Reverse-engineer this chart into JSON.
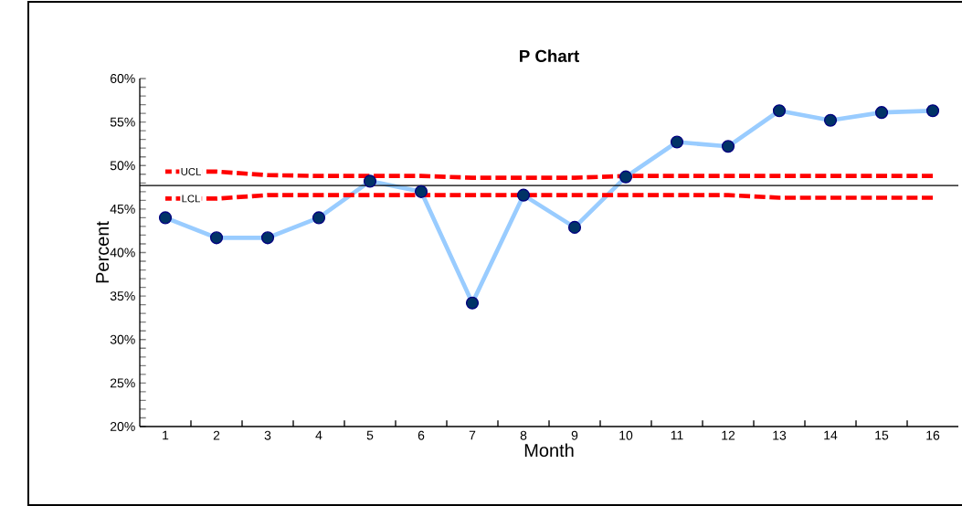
{
  "chart_data": {
    "type": "line",
    "title": "P Chart",
    "xlabel": "Month",
    "ylabel": "Percent",
    "x": [
      1,
      2,
      3,
      4,
      5,
      6,
      7,
      8,
      9,
      10,
      11,
      12,
      13,
      14,
      15,
      16
    ],
    "xlim": [
      0.5,
      16.5
    ],
    "xticks": [
      1,
      2,
      3,
      4,
      5,
      6,
      7,
      8,
      9,
      10,
      11,
      12,
      13,
      14,
      15,
      16
    ],
    "ylim": [
      20,
      60
    ],
    "yticks": [
      {
        "value": 20,
        "label": "20%"
      },
      {
        "value": 25,
        "label": "25%"
      },
      {
        "value": 30,
        "label": "30%"
      },
      {
        "value": 35,
        "label": "35%"
      },
      {
        "value": 40,
        "label": "40%"
      },
      {
        "value": 45,
        "label": "45%"
      },
      {
        "value": 50,
        "label": "50%"
      },
      {
        "value": 55,
        "label": "55%"
      },
      {
        "value": 60,
        "label": "60%"
      }
    ],
    "grid": false,
    "series": [
      {
        "color": "#99ccff",
        "marker": "circle",
        "line_style": "solid",
        "values": [
          44.0,
          41.7,
          41.7,
          44.0,
          48.2,
          47.0,
          34.2,
          46.6,
          42.9,
          48.7,
          52.7,
          52.2,
          56.3,
          55.2,
          56.1,
          56.3
        ]
      },
      {
        "color": "#ff0000",
        "marker": "none",
        "line_style": "dashed",
        "values": [
          49.3,
          49.3,
          48.9,
          48.8,
          48.8,
          48.8,
          48.6,
          48.6,
          48.6,
          48.8,
          48.8,
          48.8,
          48.8,
          48.8,
          48.8,
          48.8
        ]
      },
      {
        "color": "#ff0000",
        "marker": "none",
        "line_style": "dashed",
        "values": [
          46.2,
          46.2,
          46.6,
          46.6,
          46.6,
          46.6,
          46.6,
          46.6,
          46.6,
          46.6,
          46.6,
          46.6,
          46.3,
          46.3,
          46.3,
          46.3
        ]
      }
    ],
    "ref_lines": [
      {
        "axis": "y",
        "value": 47.7,
        "color": "#000000"
      }
    ],
    "annotations": [
      {
        "text": "UCL",
        "x": 1.5,
        "y": 49.3
      },
      {
        "text": "LCL",
        "x": 1.5,
        "y": 46.2
      }
    ]
  }
}
